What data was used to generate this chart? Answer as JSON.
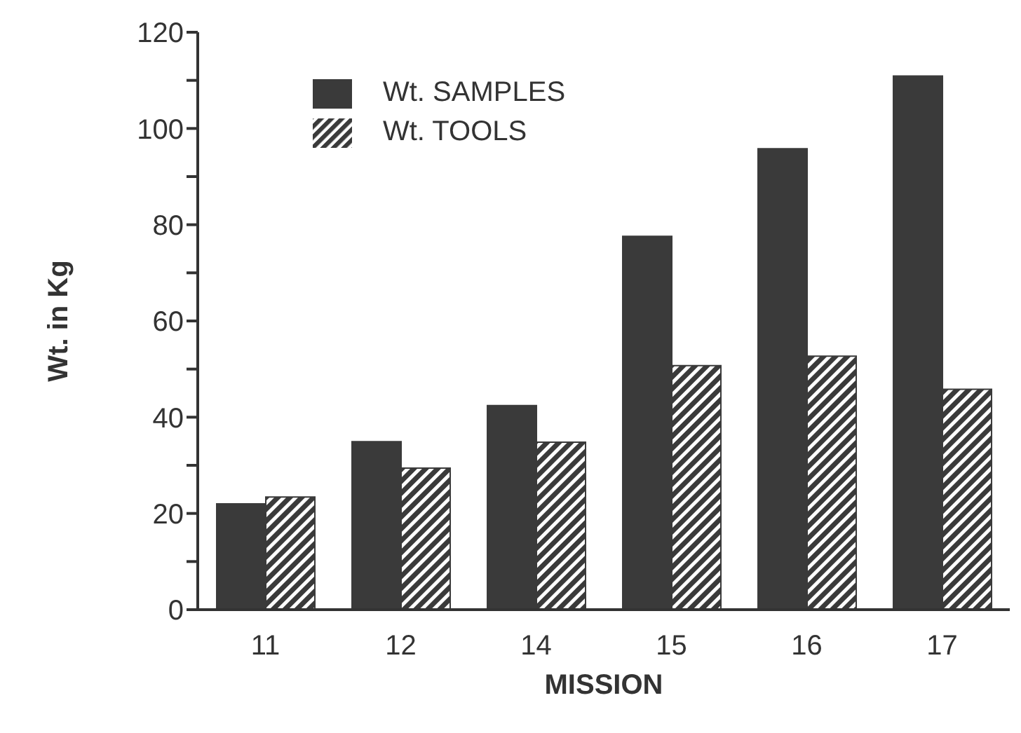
{
  "chart_data": {
    "type": "bar",
    "xlabel": "MISSION",
    "ylabel": "Wt. in Kg",
    "categories": [
      "11",
      "12",
      "14",
      "15",
      "16",
      "17"
    ],
    "series": [
      {
        "name": "Wt. SAMPLES",
        "color": "#3a3a3a",
        "values": [
          22,
          34.9,
          42.4,
          77.6,
          95.8,
          110.9
        ]
      },
      {
        "name": "Wt. TOOLS",
        "color": "#3a3a3a",
        "values": [
          23.4,
          29.4,
          34.8,
          50.7,
          52.7,
          45.8
        ]
      }
    ],
    "ylim": [
      0,
      120
    ],
    "yticks": [
      0,
      {
        "value": 10,
        "label": null
      },
      20,
      {
        "value": 30,
        "label": null
      },
      40,
      {
        "value": 50,
        "label": null
      },
      60,
      {
        "value": 70,
        "label": null
      },
      80,
      {
        "value": 90,
        "label": null
      },
      100,
      {
        "value": 110,
        "label": null
      },
      120
    ],
    "grid": false,
    "legend": "top left"
  }
}
